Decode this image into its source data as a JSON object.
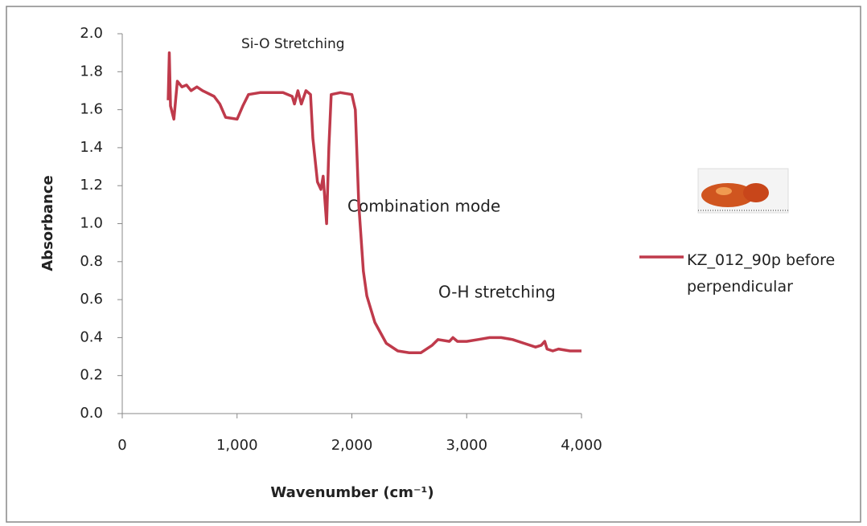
{
  "chart_data": {
    "type": "line",
    "x_label": "Wavenumber (cm⁻¹)",
    "y_label": "Absorbance",
    "annotations": [
      "Si-O Stretching",
      "Combination mode",
      "O-H stretching"
    ],
    "x": [
      400,
      410,
      420,
      450,
      480,
      520,
      560,
      600,
      650,
      700,
      800,
      850,
      900,
      1000,
      1050,
      1100,
      1200,
      1400,
      1480,
      1500,
      1530,
      1560,
      1600,
      1640,
      1660,
      1700,
      1730,
      1750,
      1780,
      1800,
      1820,
      1900,
      2000,
      2030,
      2060,
      2100,
      2130,
      2150,
      2200,
      2300,
      2400,
      2500,
      2600,
      2700,
      2750,
      2850,
      2880,
      2920,
      3000,
      3100,
      3200,
      3300,
      3400,
      3500,
      3600,
      3650,
      3680,
      3700,
      3750,
      3800,
      3900,
      4000
    ],
    "series": [
      {
        "name": "KZ_012_90p before perpendicular",
        "color": "#bf3a4b",
        "values": [
          1.65,
          1.9,
          1.62,
          1.55,
          1.75,
          1.72,
          1.73,
          1.7,
          1.72,
          1.7,
          1.67,
          1.63,
          1.56,
          1.55,
          1.62,
          1.68,
          1.69,
          1.69,
          1.67,
          1.63,
          1.7,
          1.63,
          1.7,
          1.68,
          1.45,
          1.22,
          1.18,
          1.25,
          1.0,
          1.4,
          1.68,
          1.69,
          1.68,
          1.6,
          1.1,
          0.75,
          0.62,
          0.58,
          0.48,
          0.37,
          0.33,
          0.32,
          0.32,
          0.36,
          0.39,
          0.38,
          0.4,
          0.38,
          0.38,
          0.39,
          0.4,
          0.4,
          0.39,
          0.37,
          0.35,
          0.36,
          0.38,
          0.34,
          0.33,
          0.34,
          0.33,
          0.33
        ]
      }
    ],
    "xlim": [
      0,
      4000
    ],
    "xticks": [
      0,
      {
        "value": 1000,
        "label": "1,000"
      },
      {
        "value": 2000,
        "label": "2,000"
      },
      {
        "value": 3000,
        "label": "3,000"
      },
      {
        "value": 4000,
        "label": "4,000"
      }
    ],
    "ylim": [
      0,
      2
    ],
    "yticks": [
      {
        "value": 0,
        "label": "0.0"
      },
      0.2,
      0.4,
      0.6,
      0.8,
      {
        "value": 1,
        "label": "1.0"
      },
      1.2,
      1.4,
      1.6,
      1.8,
      {
        "value": 2,
        "label": "2.0"
      }
    ],
    "grid": false,
    "legend": "right"
  }
}
